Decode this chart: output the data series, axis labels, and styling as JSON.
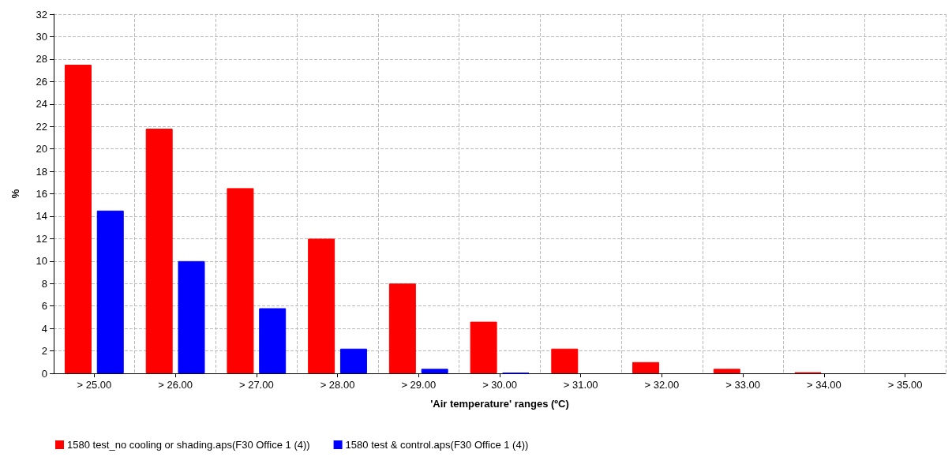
{
  "chart_data": {
    "type": "bar",
    "xlabel": "'Air temperature' ranges (ºC)",
    "ylabel": "%",
    "categories": [
      "> 25.00",
      "> 26.00",
      "> 27.00",
      "> 28.00",
      "> 29.00",
      "> 30.00",
      "> 31.00",
      "> 32.00",
      "> 33.00",
      "> 34.00",
      "> 35.00"
    ],
    "series": [
      {
        "name": "1580 test_no cooling or shading.aps(F30 Office 1 (4))",
        "color": "#ff0000",
        "values": [
          27.5,
          21.8,
          16.5,
          12,
          8,
          4.6,
          2.2,
          1.0,
          0.4,
          0.1,
          null
        ]
      },
      {
        "name": "1580 test & control.aps(F30 Office 1 (4))",
        "color": "#0000ff",
        "values": [
          14.5,
          10,
          5.8,
          2.2,
          0.4,
          0.05,
          null,
          null,
          null,
          null,
          null
        ]
      }
    ],
    "ylim": [
      0,
      32
    ],
    "yticks": [
      0,
      2,
      4,
      6,
      8,
      10,
      12,
      14,
      16,
      18,
      20,
      22,
      24,
      26,
      28,
      30,
      32
    ],
    "grid": true,
    "legend": "bottom left"
  }
}
